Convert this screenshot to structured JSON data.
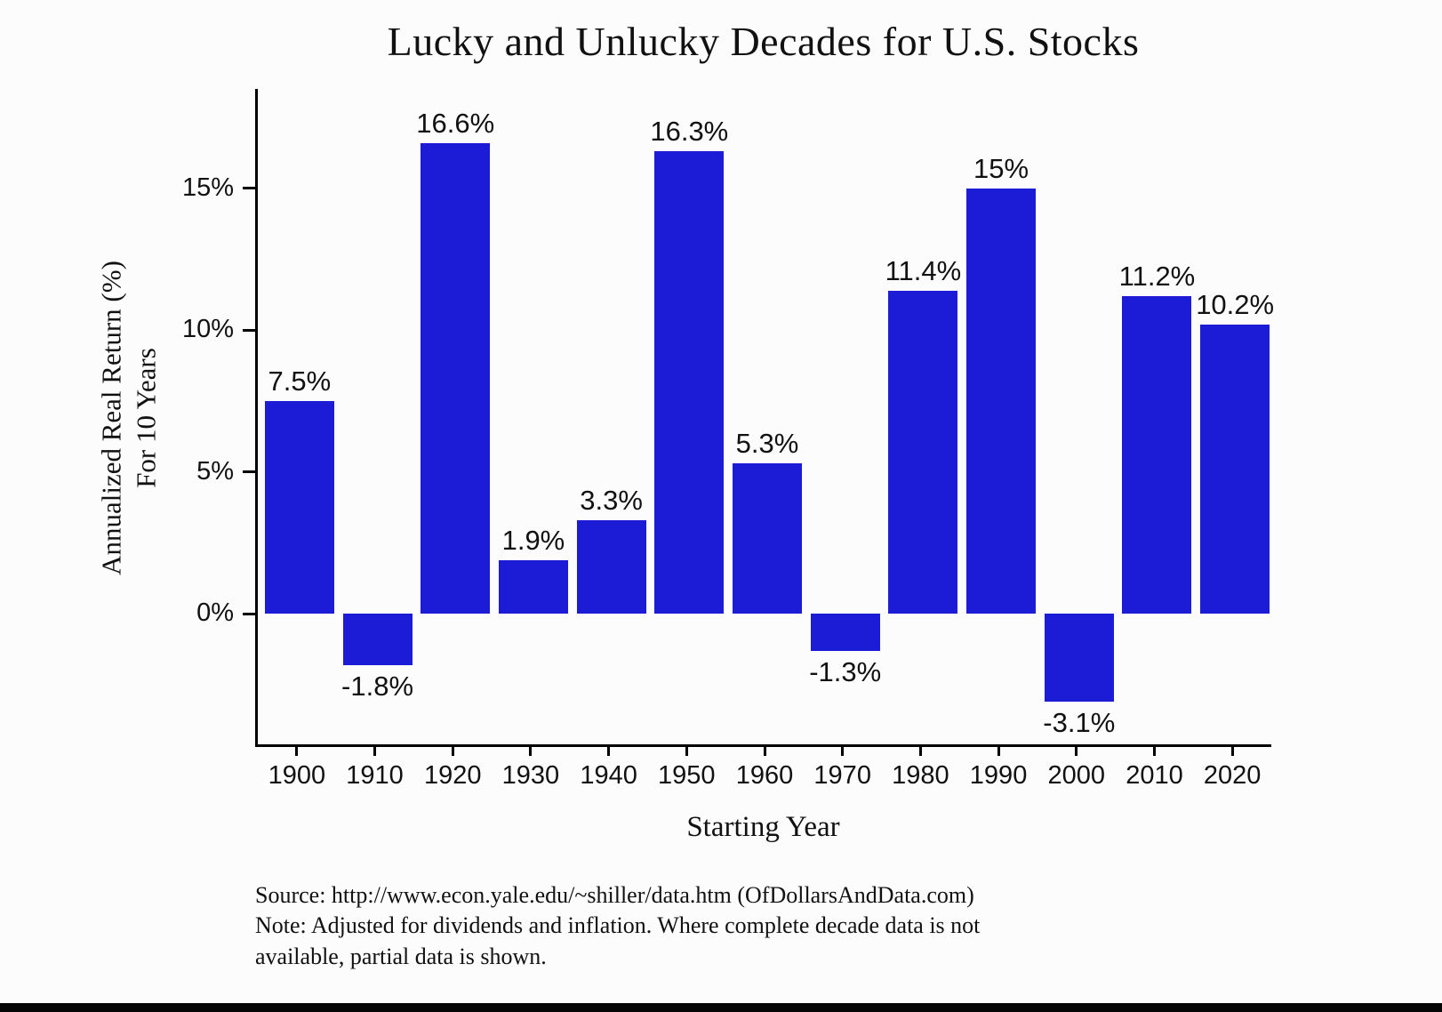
{
  "chart_data": {
    "type": "bar",
    "title": "Lucky and Unlucky Decades for U.S. Stocks",
    "xlabel": "Starting Year",
    "ylabel_line1": "Annualized Real Return (%)",
    "ylabel_line2": "For 10 Years",
    "categories": [
      "1900",
      "1910",
      "1920",
      "1930",
      "1940",
      "1950",
      "1960",
      "1970",
      "1980",
      "1990",
      "2000",
      "2010",
      "2020"
    ],
    "values": [
      7.5,
      -1.8,
      16.6,
      1.9,
      3.3,
      16.3,
      5.3,
      -1.3,
      11.4,
      15,
      -3.1,
      11.2,
      10.2
    ],
    "value_labels": [
      "7.5%",
      "-1.8%",
      "16.6%",
      "1.9%",
      "3.3%",
      "16.3%",
      "5.3%",
      "-1.3%",
      "11.4%",
      "15%",
      "-3.1%",
      "11.2%",
      "10.2%"
    ],
    "y_ticks": [
      {
        "value": 0,
        "label": "0%"
      },
      {
        "value": 5,
        "label": "5%"
      },
      {
        "value": 10,
        "label": "10%"
      },
      {
        "value": 15,
        "label": "15%"
      }
    ],
    "ylim": [
      -4.6,
      18.5
    ],
    "bar_color": "#1c1cd6",
    "grid": false,
    "legend": "none"
  },
  "footer": {
    "source_line": "Source: http://www.econ.yale.edu/~shiller/data.htm (OfDollarsAndData.com)",
    "note_line1": "Note: Adjusted for dividends and inflation. Where complete decade data is not",
    "note_line2": "available, partial data is shown."
  }
}
